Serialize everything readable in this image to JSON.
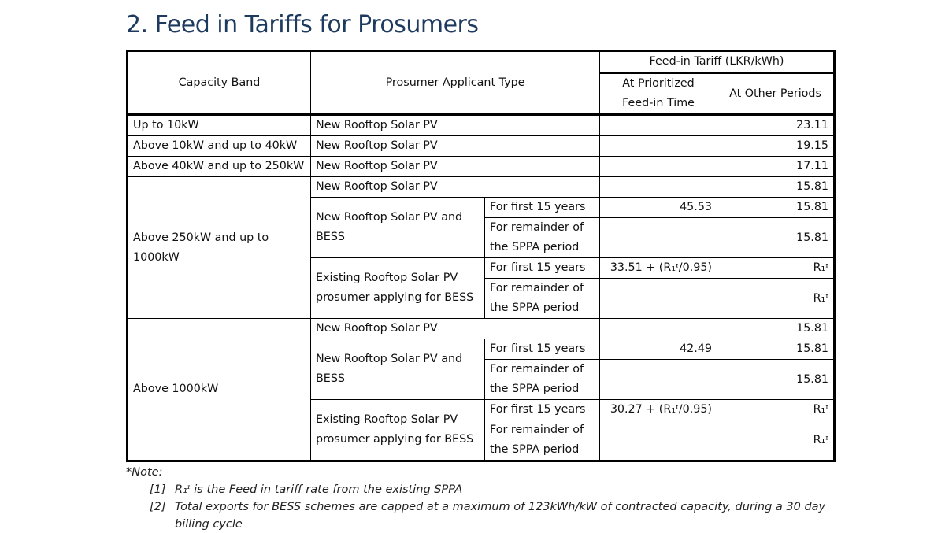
{
  "title": "2. Feed in Tariffs for Prosumers",
  "header": {
    "capacity_band": "Capacity Band",
    "applicant_type": "Prosumer Applicant Type",
    "tariff_group": "Feed-in Tariff (LKR/kWh)",
    "prioritized_line1": "At Prioritized",
    "prioritized_line2": "Feed-in Time",
    "other_periods": "At Other Periods"
  },
  "rows": {
    "r1": {
      "band": "Up to 10kW",
      "type": "New Rooftop Solar PV",
      "value": "23.11"
    },
    "r2": {
      "band": "Above 10kW and up to 40kW",
      "type": "New Rooftop Solar PV",
      "value": "19.15"
    },
    "r3": {
      "band": "Above 40kW and up to 250kW",
      "type": "New Rooftop Solar PV",
      "value": "17.11"
    }
  },
  "group_a": {
    "band_line1": "Above 250kW and up to",
    "band_line2": "1000kW",
    "new_pv": {
      "type": "New Rooftop Solar PV",
      "value": "15.81"
    },
    "pv_bess": {
      "type_line1": "New Rooftop Solar PV and",
      "type_line2": "BESS",
      "first_period": "For first 15 years",
      "first_prioritized": "45.53",
      "first_other": "15.81",
      "rem_line1": "For remainder of",
      "rem_line2": "the SPPA period",
      "rem_value": "15.81"
    },
    "existing": {
      "type_line1": "Existing Rooftop Solar PV",
      "type_line2": "prosumer applying for BESS",
      "first_period": "For first 15 years",
      "first_prioritized": "33.51 + (R₁ᶦ/0.95)",
      "first_other": "R₁ᶦ",
      "rem_line1": "For remainder of",
      "rem_line2": "the SPPA period",
      "rem_value": "R₁ᶦ"
    }
  },
  "group_b": {
    "band": "Above 1000kW",
    "new_pv": {
      "type": "New Rooftop Solar PV",
      "value": "15.81"
    },
    "pv_bess": {
      "type_line1": "New Rooftop Solar PV and",
      "type_line2": "BESS",
      "first_period": "For first 15 years",
      "first_prioritized": "42.49",
      "first_other": "15.81",
      "rem_line1": "For remainder of",
      "rem_line2": "the SPPA period",
      "rem_value": "15.81"
    },
    "existing": {
      "type_line1": "Existing Rooftop Solar PV",
      "type_line2": "prosumer applying for BESS",
      "first_period": "For first 15 years",
      "first_prioritized": "30.27 + (R₁ᶦ/0.95)",
      "first_other": "R₁ᶦ",
      "rem_line1": "For remainder of",
      "rem_line2": "the SPPA period",
      "rem_value": "R₁ᶦ"
    }
  },
  "notes": {
    "heading": "*Note:",
    "items": [
      {
        "index": "[1]",
        "text": "R₁ᶦ is the Feed in tariff rate from the existing SPPA"
      },
      {
        "index": "[2]",
        "text": "Total exports for BESS schemes are capped at a maximum of 123kWh/kW of contracted capacity, during a 30 day billing cycle"
      }
    ]
  }
}
